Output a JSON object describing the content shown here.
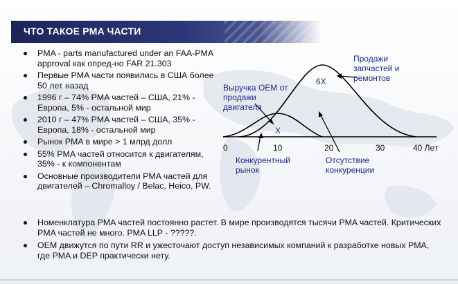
{
  "slide": {
    "title": "ЧТО ТАКОЕ PMA ЧАСТИ"
  },
  "bullets_left": [
    "PMA - parts manufactured under an FAA-PMA approval как опред-но FAR 21.303",
    "Первые PMA части появились в США более 50 лет назад",
    "1996 г – 74% PMA частей – США, 21% - Европа, 5% - остальной мир",
    "2010 г – 47% PMA частей – США, 35% - Европа, 18% - остальной мир",
    "Рынок PMA в мире > 1 млрд долл",
    "55% PMA частей относится к двигателям, 35% - к компонентам",
    "Основные производители PMA частей для двигателей – Chromalloy / Belac, Heico, PW."
  ],
  "bullets_bottom": [
    "Номенклатура PMA частей постоянно растет. В мире производятся тысячи PMA частей. Критических PMA частей не много. PMA LLP - ?????.",
    "OEM движутся по пути RR и ужесточают доступ независимых компаний к разработке новых PMA, где PMA и DEP практически нету."
  ],
  "diagram": {
    "label_oem_line1": "Выручка OEM от",
    "label_oem_line2": "продажи",
    "label_oem_line3": "двигателя",
    "label_parts_line1": "Продажи",
    "label_parts_line2": "запчастей и",
    "label_parts_line3": "ремонтов",
    "label_small_peak": "X",
    "label_big_peak": "6X",
    "label_competitive_line1": "Конкурентный",
    "label_competitive_line2": "рынок",
    "label_no_competition_line1": "Отсутствие",
    "label_no_competition_line2": "конкуренции",
    "axis_ticks": [
      "0",
      "10",
      "20",
      "30",
      "40 Лет"
    ],
    "colors": {
      "curve": "#000000",
      "labels": "#1f2a8a",
      "title_bar": "#1d2459"
    }
  }
}
